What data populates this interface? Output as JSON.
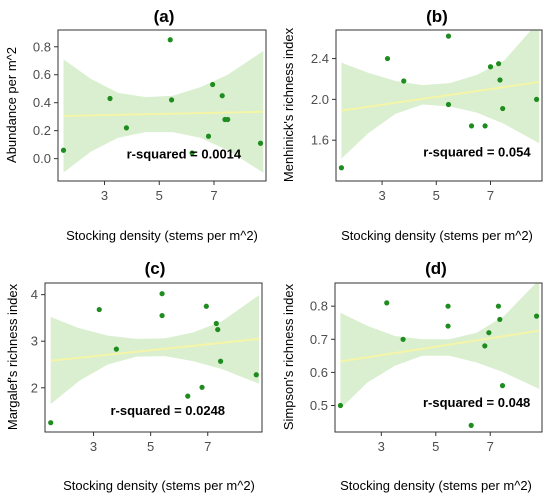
{
  "chart_data": [
    {
      "type": "scatter",
      "title": "(a)",
      "xlabel": "Stocking density (stems per m^2)",
      "ylabel": "Abundance per m^2",
      "xlim": [
        1.3,
        8.9
      ],
      "ylim": [
        -0.16,
        0.92
      ],
      "xticks": [
        3,
        5,
        7
      ],
      "yticks": [
        0.0,
        0.2,
        0.4,
        0.6,
        0.8
      ],
      "ytick_labels": [
        "0.0",
        "0.2",
        "0.4",
        "0.6",
        "0.8"
      ],
      "points": [
        [
          1.5,
          0.06
        ],
        [
          3.2,
          0.43
        ],
        [
          3.8,
          0.22
        ],
        [
          5.4,
          0.85
        ],
        [
          5.45,
          0.42
        ],
        [
          6.2,
          0.04
        ],
        [
          6.8,
          0.16
        ],
        [
          6.95,
          0.53
        ],
        [
          7.3,
          0.45
        ],
        [
          7.4,
          0.28
        ],
        [
          7.5,
          0.28
        ],
        [
          8.7,
          0.11
        ]
      ],
      "fit": {
        "x": [
          1.5,
          8.8
        ],
        "y": [
          0.305,
          0.335
        ]
      },
      "band": {
        "x": [
          1.5,
          2.5,
          3.5,
          4.5,
          5.5,
          6.5,
          7.5,
          8.8
        ],
        "lower": [
          -0.1,
          0.05,
          0.15,
          0.19,
          0.19,
          0.15,
          0.06,
          -0.1
        ],
        "upper": [
          0.71,
          0.57,
          0.47,
          0.44,
          0.45,
          0.51,
          0.6,
          0.77
        ]
      },
      "annotation": "r-squared = 0.0014",
      "annotation_pos": [
        5.9,
        0.0
      ]
    },
    {
      "type": "scatter",
      "title": "(b)",
      "xlabel": "Stocking density (stems per m^2)",
      "ylabel": "Menhinick's richness index",
      "xlim": [
        1.3,
        8.9
      ],
      "ylim": [
        1.2,
        2.68
      ],
      "xticks": [
        3,
        5,
        7
      ],
      "yticks": [
        1.6,
        2.0,
        2.4
      ],
      "ytick_labels": [
        "1.6",
        "2.0",
        "2.4"
      ],
      "points": [
        [
          1.5,
          1.33
        ],
        [
          3.2,
          2.4
        ],
        [
          3.8,
          2.18
        ],
        [
          5.45,
          2.62
        ],
        [
          5.45,
          1.95
        ],
        [
          6.3,
          1.74
        ],
        [
          6.8,
          1.74
        ],
        [
          7.0,
          2.32
        ],
        [
          7.3,
          2.35
        ],
        [
          7.35,
          2.19
        ],
        [
          7.45,
          1.91
        ],
        [
          8.7,
          2.0
        ]
      ],
      "fit": {
        "x": [
          1.5,
          8.8
        ],
        "y": [
          1.89,
          2.17
        ]
      },
      "band": {
        "x": [
          1.5,
          2.5,
          3.5,
          4.5,
          5.5,
          6.5,
          7.5,
          8.8
        ],
        "lower": [
          1.42,
          1.67,
          1.86,
          1.95,
          1.93,
          1.87,
          1.76,
          1.57
        ],
        "upper": [
          2.36,
          2.26,
          2.18,
          2.14,
          2.16,
          2.24,
          2.38,
          2.77
        ]
      },
      "annotation": "r-squared = 0.054",
      "annotation_pos": [
        6.5,
        1.44
      ]
    },
    {
      "type": "scatter",
      "title": "(c)",
      "xlabel": "Stocking density (stems per m^2)",
      "ylabel": "Margalef's richness index",
      "xlim": [
        1.3,
        8.9
      ],
      "ylim": [
        1.05,
        4.25
      ],
      "xticks": [
        3,
        5,
        7
      ],
      "yticks": [
        2,
        3,
        4
      ],
      "ytick_labels": [
        "2",
        "3",
        "4"
      ],
      "points": [
        [
          1.5,
          1.25
        ],
        [
          3.2,
          3.68
        ],
        [
          3.8,
          2.83
        ],
        [
          5.4,
          4.02
        ],
        [
          5.4,
          3.55
        ],
        [
          6.3,
          1.82
        ],
        [
          6.8,
          2.01
        ],
        [
          6.95,
          3.75
        ],
        [
          7.3,
          3.38
        ],
        [
          7.35,
          3.25
        ],
        [
          7.45,
          2.57
        ],
        [
          8.7,
          2.28
        ]
      ],
      "fit": {
        "x": [
          1.5,
          8.8
        ],
        "y": [
          2.58,
          3.05
        ]
      },
      "band": {
        "x": [
          1.5,
          2.5,
          3.5,
          4.5,
          5.5,
          6.5,
          7.5,
          8.8
        ],
        "lower": [
          1.65,
          2.15,
          2.5,
          2.67,
          2.68,
          2.57,
          2.4,
          2.09
        ],
        "upper": [
          3.52,
          3.28,
          3.12,
          3.05,
          3.06,
          3.19,
          3.43,
          3.99
        ]
      },
      "annotation": "r-squared = 0.0248",
      "annotation_pos": [
        5.6,
        1.42
      ]
    },
    {
      "type": "scatter",
      "title": "(d)",
      "xlabel": "Stocking density (stems per m^2)",
      "ylabel": "Simpson's richness index",
      "xlim": [
        1.3,
        8.9
      ],
      "ylim": [
        0.42,
        0.87
      ],
      "xticks": [
        3,
        5,
        7
      ],
      "yticks": [
        0.5,
        0.6,
        0.7,
        0.8
      ],
      "ytick_labels": [
        "0.5",
        "0.6",
        "0.7",
        "0.8"
      ],
      "points": [
        [
          1.5,
          0.5
        ],
        [
          3.2,
          0.81
        ],
        [
          3.8,
          0.7
        ],
        [
          5.45,
          0.8
        ],
        [
          5.45,
          0.74
        ],
        [
          6.3,
          0.44
        ],
        [
          6.8,
          0.68
        ],
        [
          6.95,
          0.72
        ],
        [
          7.3,
          0.8
        ],
        [
          7.35,
          0.76
        ],
        [
          7.45,
          0.56
        ],
        [
          8.7,
          0.77
        ]
      ],
      "fit": {
        "x": [
          1.5,
          8.8
        ],
        "y": [
          0.633,
          0.726
        ]
      },
      "band": {
        "x": [
          1.5,
          2.5,
          3.5,
          4.5,
          5.5,
          6.5,
          7.5,
          8.8
        ],
        "lower": [
          0.49,
          0.57,
          0.62,
          0.65,
          0.65,
          0.63,
          0.6,
          0.55
        ],
        "upper": [
          0.78,
          0.74,
          0.71,
          0.7,
          0.7,
          0.72,
          0.77,
          0.88
        ]
      },
      "annotation": "r-squared = 0.048",
      "annotation_pos": [
        6.5,
        0.495
      ]
    }
  ],
  "colors": {
    "band": "#d9efcf",
    "fit": "#f5f5a8",
    "point": "#1e8c1e",
    "frame": "#333333",
    "tick_text": "#4d4d4d"
  }
}
